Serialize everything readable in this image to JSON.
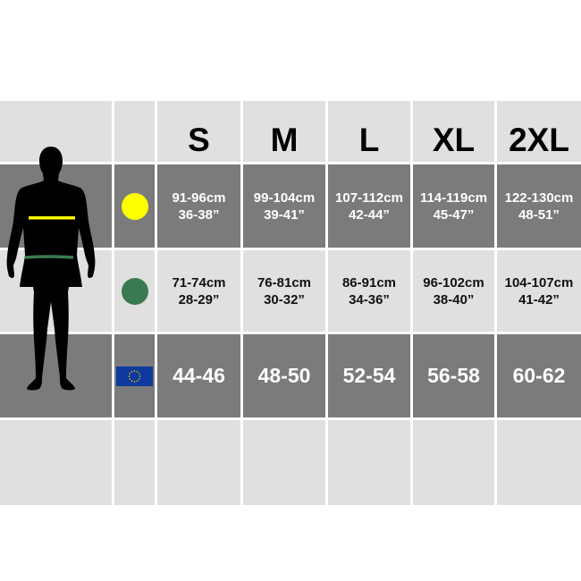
{
  "sizes": [
    "S",
    "M",
    "L",
    "XL",
    "2XL"
  ],
  "rows": [
    {
      "icon": "chest-yellow-dot-icon",
      "color": "#ffff00",
      "cm": [
        "91-96cm",
        "99-104cm",
        "107-112cm",
        "114-119cm",
        "122-130cm"
      ],
      "in": [
        "36-38”",
        "39-41”",
        "42-44”",
        "45-47”",
        "48-51”"
      ]
    },
    {
      "icon": "waist-green-dot-icon",
      "color": "#3a7a50",
      "cm": [
        "71-74cm",
        "76-81cm",
        "86-91cm",
        "96-102cm",
        "104-107cm"
      ],
      "in": [
        "28-29”",
        "30-32”",
        "34-36”",
        "38-40”",
        "41-42”"
      ]
    },
    {
      "icon": "eu-flag-icon",
      "values": [
        "44-46",
        "48-50",
        "52-54",
        "56-58",
        "60-62"
      ]
    }
  ],
  "colors": {
    "dark": "#7b7b7b",
    "light": "#e0e0e0",
    "chest": "#ffff00",
    "waist": "#3a7a50",
    "eu_blue": "#0d3a9c",
    "eu_star": "#ffcc00"
  }
}
